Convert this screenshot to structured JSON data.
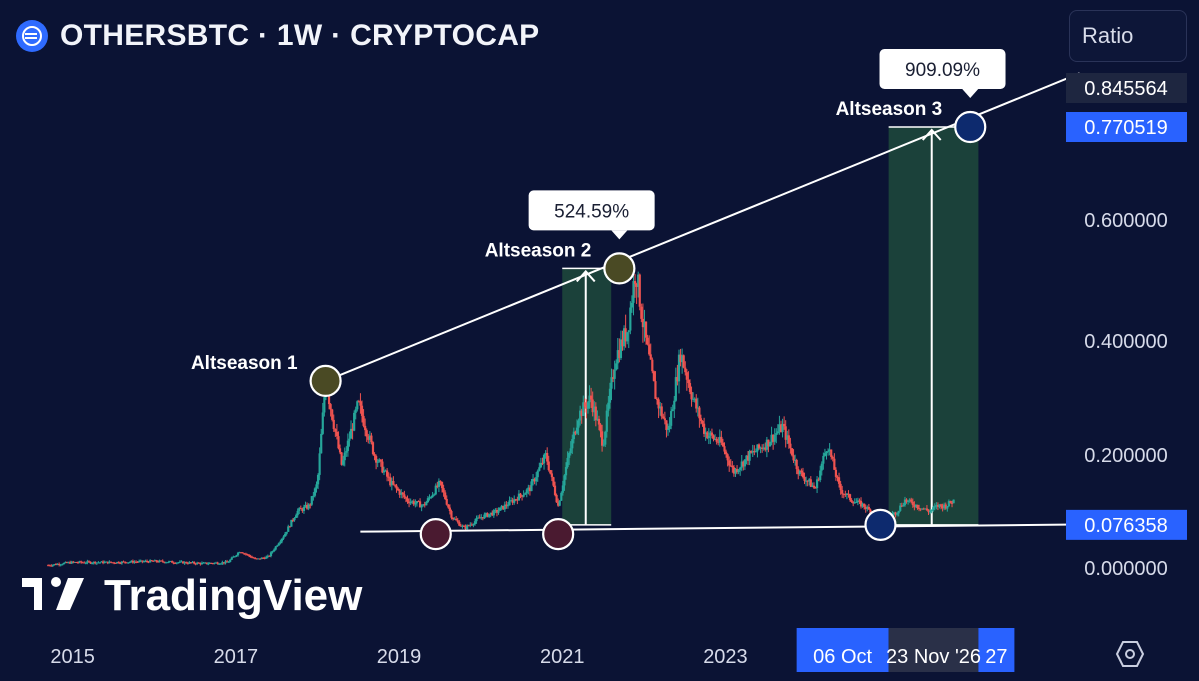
{
  "header": {
    "title": "OTHERSBTC · 1W · CRYPTOCAP",
    "ratio_label": "Ratio"
  },
  "watermark": "TradingView",
  "price_axis": {
    "ticks": [
      "0.600000",
      "0.400000",
      "0.200000",
      "0.000000"
    ],
    "badges": [
      {
        "label": "0.845564",
        "value": 0.845564,
        "style": "dark"
      },
      {
        "label": "0.770519",
        "value": 0.770519,
        "style": "blue"
      },
      {
        "label": "0.076358",
        "value": 0.076358,
        "style": "blue"
      }
    ]
  },
  "time_axis": {
    "years": [
      "2015",
      "2017",
      "2019",
      "2021",
      "2023"
    ],
    "range_start": "06 Oct",
    "range_end": "23 Nov '26",
    "range_after": "27"
  },
  "colors": {
    "background": "#0b1334",
    "up": "#26a69a",
    "down": "#ef5350",
    "highlight_zone": "#1f4a3c",
    "accent_blue": "#2962ff",
    "line": "#ffffff"
  },
  "chart_data": {
    "type": "candlestick",
    "title": "OTHERSBTC · 1W · CRYPTOCAP",
    "ylabel": "Ratio",
    "ylim": [
      0,
      0.85
    ],
    "xlim": [
      2014.6,
      2027.1
    ],
    "grid": false,
    "series": [
      {
        "name": "OTHERSBTC",
        "x": [
          2014.7,
          2015.0,
          2015.5,
          2016.0,
          2016.3,
          2016.6,
          2016.9,
          2017.05,
          2017.25,
          2017.4,
          2017.6,
          2017.75,
          2017.9,
          2018.0,
          2018.1,
          2018.3,
          2018.5,
          2018.7,
          2018.9,
          2019.1,
          2019.3,
          2019.5,
          2019.65,
          2019.8,
          2020.0,
          2020.2,
          2020.4,
          2020.6,
          2020.8,
          2020.95,
          2021.05,
          2021.2,
          2021.35,
          2021.5,
          2021.65,
          2021.8,
          2021.9,
          2022.0,
          2022.15,
          2022.3,
          2022.45,
          2022.6,
          2022.75,
          2022.95,
          2023.1,
          2023.3,
          2023.5,
          2023.7,
          2023.9,
          2024.1,
          2024.25,
          2024.4,
          2024.55,
          2024.7,
          2024.85,
          2025.0,
          2025.1,
          2025.2,
          2025.35,
          2025.5,
          2025.6,
          2025.7,
          2025.8
        ],
        "values": [
          0.005,
          0.01,
          0.01,
          0.012,
          0.01,
          0.008,
          0.01,
          0.03,
          0.015,
          0.02,
          0.06,
          0.1,
          0.11,
          0.15,
          0.33,
          0.18,
          0.29,
          0.2,
          0.15,
          0.12,
          0.11,
          0.15,
          0.09,
          0.07,
          0.09,
          0.1,
          0.12,
          0.14,
          0.2,
          0.11,
          0.18,
          0.27,
          0.3,
          0.22,
          0.37,
          0.42,
          0.52,
          0.42,
          0.3,
          0.24,
          0.38,
          0.3,
          0.24,
          0.22,
          0.17,
          0.2,
          0.22,
          0.25,
          0.17,
          0.14,
          0.22,
          0.14,
          0.12,
          0.11,
          0.09,
          0.09,
          0.1,
          0.12,
          0.11,
          0.1,
          0.11,
          0.11,
          0.12
        ]
      }
    ],
    "trendlines": [
      {
        "type": "resistance",
        "from": {
          "x": 2018.1,
          "y": 0.33
        },
        "to": {
          "x": 2026.9,
          "y": 0.845564
        }
      },
      {
        "type": "support",
        "from": {
          "x": 2019.0,
          "y": 0.065
        },
        "to": {
          "x": 2026.9,
          "y": 0.076358
        }
      }
    ],
    "zones": [
      {
        "x0": 2021.0,
        "x1": 2021.6,
        "y0": 0.076358,
        "y1": 0.52
      },
      {
        "x0": 2025.0,
        "x1": 2026.1,
        "y0": 0.076358,
        "y1": 0.770519
      }
    ],
    "annotations": [
      {
        "text": "Altseason 1",
        "x": 2018.1,
        "y": 0.33,
        "marker": "circle-olive"
      },
      {
        "text": "Altseason 2",
        "x": 2021.7,
        "y": 0.52,
        "marker": "circle-olive",
        "callout": "524.59%"
      },
      {
        "text": "Altseason 3",
        "x": 2026.0,
        "y": 0.770519,
        "marker": "circle-blue",
        "callout": "909.09%"
      },
      {
        "text": "",
        "x": 2019.45,
        "y": 0.06,
        "marker": "circle-maroon"
      },
      {
        "text": "",
        "x": 2020.95,
        "y": 0.06,
        "marker": "circle-maroon"
      },
      {
        "text": "",
        "x": 2024.9,
        "y": 0.076358,
        "marker": "circle-blue"
      }
    ]
  }
}
